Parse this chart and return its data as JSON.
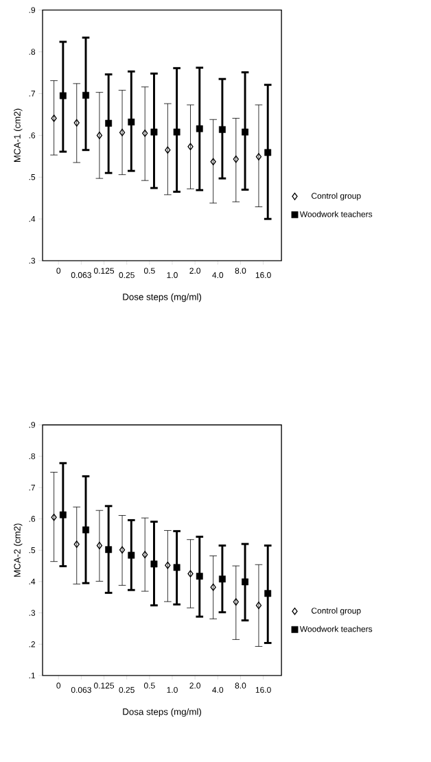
{
  "chart_data": [
    {
      "type": "scatter",
      "ylabel": "MCA-1 (cm2)",
      "xlabel": "Dose steps (mg/ml)",
      "categories": [
        "0",
        "0.063",
        "0.125",
        "0.25",
        "0.5",
        "1.0",
        "2.0",
        "4.0",
        "8.0",
        "16.0"
      ],
      "ylim": [
        0.3,
        0.9
      ],
      "yticks": [
        {
          "value": 0.3,
          "label": ".3"
        },
        {
          "value": 0.4,
          "label": ".4"
        },
        {
          "value": 0.5,
          "label": ".5"
        },
        {
          "value": 0.6,
          "label": ".6"
        },
        {
          "value": 0.7,
          "label": ".7"
        },
        {
          "value": 0.8,
          "label": ".8"
        },
        {
          "value": 0.9,
          "label": ".9"
        }
      ],
      "legend": "right",
      "series": [
        {
          "name": "Control group",
          "color": "#000000",
          "marker": "diamond",
          "values": [
            0.641,
            0.63,
            0.6,
            0.607,
            0.605,
            0.565,
            0.573,
            0.537,
            0.543,
            0.549
          ],
          "errors": [
            [
              0.553,
              0.731
            ],
            [
              0.535,
              0.724
            ],
            [
              0.497,
              0.703
            ],
            [
              0.506,
              0.708
            ],
            [
              0.492,
              0.716
            ],
            [
              0.458,
              0.676
            ],
            [
              0.472,
              0.673
            ],
            [
              0.438,
              0.638
            ],
            [
              0.441,
              0.641
            ],
            [
              0.429,
              0.673
            ]
          ]
        },
        {
          "name": "Woodwork teachers",
          "color": "#000000",
          "marker": "square",
          "values": [
            0.695,
            0.696,
            0.629,
            0.632,
            0.608,
            0.608,
            0.616,
            0.614,
            0.608,
            0.559
          ],
          "errors": [
            [
              0.561,
              0.824
            ],
            [
              0.565,
              0.834
            ],
            [
              0.51,
              0.746
            ],
            [
              0.515,
              0.753
            ],
            [
              0.474,
              0.748
            ],
            [
              0.465,
              0.761
            ],
            [
              0.469,
              0.762
            ],
            [
              0.497,
              0.735
            ],
            [
              0.47,
              0.751
            ],
            [
              0.4,
              0.721
            ]
          ]
        }
      ]
    },
    {
      "type": "scatter",
      "ylabel": "MCA-2 (cm2)",
      "xlabel": "Dosa steps (mg/ml)",
      "categories": [
        "0",
        "0.063",
        "0.125",
        "0.25",
        "0.5",
        "1.0",
        "2.0",
        "4.0",
        "8.0",
        "16.0"
      ],
      "ylim": [
        0.1,
        0.9
      ],
      "yticks": [
        {
          "value": 0.1,
          "label": ".1"
        },
        {
          "value": 0.2,
          "label": ".2"
        },
        {
          "value": 0.3,
          "label": ".3"
        },
        {
          "value": 0.4,
          "label": ".4"
        },
        {
          "value": 0.5,
          "label": ".5"
        },
        {
          "value": 0.6,
          "label": ".6"
        },
        {
          "value": 0.7,
          "label": ".7"
        },
        {
          "value": 0.8,
          "label": ".8"
        },
        {
          "value": 0.9,
          "label": ".9"
        }
      ],
      "legend": "right",
      "series": [
        {
          "name": "Control group",
          "color": "#000000",
          "marker": "diamond",
          "values": [
            0.605,
            0.519,
            0.515,
            0.501,
            0.486,
            0.452,
            0.425,
            0.382,
            0.335,
            0.324
          ],
          "errors": [
            [
              0.464,
              0.749
            ],
            [
              0.392,
              0.638
            ],
            [
              0.401,
              0.627
            ],
            [
              0.388,
              0.611
            ],
            [
              0.369,
              0.603
            ],
            [
              0.336,
              0.563
            ],
            [
              0.316,
              0.534
            ],
            [
              0.281,
              0.482
            ],
            [
              0.215,
              0.45
            ],
            [
              0.193,
              0.454
            ]
          ]
        },
        {
          "name": "Woodwork teachers",
          "color": "#000000",
          "marker": "square",
          "values": [
            0.613,
            0.565,
            0.502,
            0.484,
            0.456,
            0.445,
            0.417,
            0.408,
            0.399,
            0.362
          ],
          "errors": [
            [
              0.449,
              0.778
            ],
            [
              0.395,
              0.736
            ],
            [
              0.364,
              0.641
            ],
            [
              0.373,
              0.596
            ],
            [
              0.324,
              0.591
            ],
            [
              0.327,
              0.561
            ],
            [
              0.288,
              0.543
            ],
            [
              0.302,
              0.515
            ],
            [
              0.276,
              0.52
            ],
            [
              0.204,
              0.515
            ]
          ]
        }
      ]
    }
  ]
}
